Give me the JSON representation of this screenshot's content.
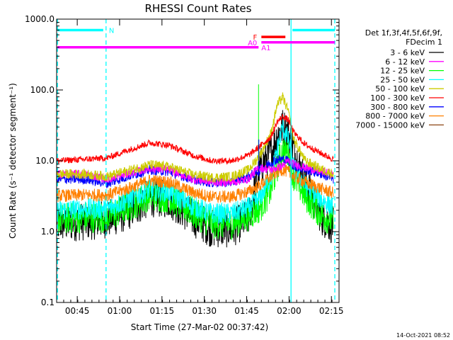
{
  "chart_data": {
    "type": "line",
    "title": "RHESSI Count Rates",
    "xlabel": "Start Time (27-Mar-02 00:37:42)",
    "ylabel": "Count Rate (s⁻¹ detector segment⁻¹)",
    "yscale": "log",
    "ylim": [
      0.1,
      1000
    ],
    "xlim_minutes": [
      0,
      100
    ],
    "x_tick_labels": [
      "00:45",
      "01:00",
      "01:15",
      "01:30",
      "01:45",
      "02:00",
      "02:15"
    ],
    "x_tick_minutes": [
      7.3,
      22.3,
      37.3,
      52.3,
      67.3,
      82.3,
      97.3
    ],
    "y_tick_labels": [
      "0.1",
      "1.0",
      "10.0",
      "100.0",
      "1000.0"
    ],
    "y_tick_values": [
      0.1,
      1,
      10,
      100,
      1000
    ],
    "legend_header": [
      "Det 1f,3f,4f,5f,6f,9f,",
      "FDecim 1"
    ],
    "grid": false,
    "legend_position": "right",
    "series": [
      {
        "name": "3 - 6 keV",
        "color": "#000000",
        "x_minutes": [
          0,
          10,
          18,
          25,
          33,
          40,
          48,
          55,
          62,
          68,
          72,
          76,
          78,
          80,
          82,
          84,
          88,
          94,
          98
        ],
        "values": [
          1.3,
          1.4,
          1.5,
          1.9,
          3.0,
          2.9,
          1.6,
          1.1,
          1.1,
          1.6,
          8.0,
          13,
          22,
          30,
          25,
          14,
          5.0,
          1.6,
          1.2
        ]
      },
      {
        "name": "6 - 12 keV",
        "color": "#ff00ff",
        "x_minutes": [
          0,
          10,
          18,
          25,
          33,
          40,
          48,
          55,
          62,
          68,
          70,
          72,
          76,
          80,
          82,
          84,
          88,
          94,
          98
        ],
        "values": [
          6.5,
          6.5,
          5.5,
          6.5,
          7.8,
          7.5,
          5.5,
          5.0,
          5.0,
          5.5,
          7.0,
          8.0,
          7.5,
          8.5,
          10,
          9,
          8.0,
          7.0,
          6.5
        ]
      },
      {
        "name": "12 - 25 keV",
        "color": "#00ff00",
        "x_minutes": [
          0,
          10,
          18,
          25,
          33,
          40,
          48,
          55,
          62,
          68,
          72,
          76,
          78,
          80,
          82,
          84,
          88,
          94,
          98
        ],
        "values": [
          1.5,
          1.6,
          1.6,
          2.2,
          3.3,
          3.0,
          1.9,
          1.3,
          1.3,
          1.7,
          2.2,
          4.0,
          8.0,
          14,
          13,
          6.0,
          3.2,
          1.7,
          1.4
        ]
      },
      {
        "name": "25 - 50 keV",
        "color": "#00ffff",
        "x_minutes": [
          0,
          10,
          18,
          25,
          33,
          40,
          48,
          55,
          62,
          68,
          72,
          76,
          78,
          80,
          82,
          84,
          88,
          94,
          98
        ],
        "values": [
          2.0,
          2.1,
          2.1,
          2.8,
          3.9,
          3.6,
          2.3,
          1.8,
          1.8,
          2.2,
          3.0,
          6.0,
          14,
          30,
          20,
          8.0,
          4.5,
          2.8,
          2.2
        ]
      },
      {
        "name": "50 - 100 keV",
        "color": "#cccc00",
        "x_minutes": [
          0,
          10,
          18,
          25,
          33,
          40,
          48,
          55,
          62,
          68,
          72,
          76,
          78,
          80,
          82,
          84,
          88,
          94,
          98
        ],
        "values": [
          6.5,
          6.5,
          6.0,
          7.2,
          8.8,
          8.2,
          6.4,
          5.8,
          6.0,
          7.5,
          12,
          25,
          60,
          80,
          50,
          20,
          10,
          7.5,
          6.5
        ]
      },
      {
        "name": "100 - 300 keV",
        "color": "#ff0000",
        "x_minutes": [
          0,
          10,
          18,
          25,
          33,
          40,
          48,
          55,
          62,
          68,
          72,
          76,
          78,
          80,
          82,
          84,
          88,
          94,
          98
        ],
        "values": [
          10,
          10.5,
          11,
          14,
          18,
          16.5,
          12,
          10,
          10,
          12,
          16,
          22,
          35,
          42,
          38,
          25,
          17,
          12.5,
          10.5
        ]
      },
      {
        "name": "300 - 800 keV",
        "color": "#0000ff",
        "x_minutes": [
          0,
          10,
          18,
          25,
          33,
          40,
          48,
          55,
          62,
          68,
          72,
          76,
          78,
          80,
          82,
          84,
          88,
          94,
          98
        ],
        "values": [
          5.5,
          5.5,
          4.8,
          6.0,
          7.5,
          7.0,
          5.5,
          4.9,
          5.0,
          6.0,
          7.5,
          9.5,
          10.5,
          10.5,
          10,
          8.5,
          7.5,
          6.5,
          5.5
        ]
      },
      {
        "name": "800 - 7000 keV",
        "color": "#ff8000",
        "x_minutes": [
          0,
          10,
          18,
          25,
          33,
          40,
          48,
          55,
          62,
          68,
          72,
          76,
          78,
          80,
          82,
          84,
          88,
          94,
          98
        ],
        "values": [
          3.2,
          3.3,
          3.3,
          4.0,
          5.3,
          5.0,
          3.6,
          3.1,
          3.1,
          3.7,
          4.5,
          6.0,
          7.0,
          7.5,
          7.0,
          6.0,
          5.0,
          4.0,
          3.5
        ]
      },
      {
        "name": "7000 - 15000 keV",
        "color": "#8b4513",
        "x_minutes": [],
        "values": []
      }
    ],
    "spikes": [
      {
        "x_minutes": 71.5,
        "values": [
          11,
          120
        ],
        "color": "#00ff00"
      },
      {
        "x_minutes": 71.6,
        "values": [
          6,
          20
        ],
        "color": "#0000ff"
      }
    ],
    "vertical_lines": [
      {
        "x_minutes": 0.3,
        "color": "#00ffff",
        "style": "dashed"
      },
      {
        "x_minutes": 17.5,
        "color": "#00ffff",
        "style": "dashed"
      },
      {
        "x_minutes": 83.0,
        "color": "#00ffff",
        "style": "solid"
      },
      {
        "x_minutes": 98.5,
        "color": "#00ffff",
        "style": "dashed"
      }
    ],
    "flag_bars": [
      {
        "label": "N",
        "color": "#00ffff",
        "segments": [
          [
            0.3,
            16.5
          ],
          [
            83.5,
            98.5
          ]
        ],
        "level": 700,
        "label_x": 18.5,
        "label_side": "right"
      },
      {
        "label": "F",
        "color": "#ff0000",
        "segments": [
          [
            72.5,
            81.0
          ]
        ],
        "level": 560,
        "label_x": 71.0,
        "label_side": "left"
      },
      {
        "label": "A0",
        "color": "#ff00ff",
        "segments": [
          [
            72.5,
            98.5
          ]
        ],
        "level": 470,
        "label_x": 71.0,
        "label_side": "left"
      },
      {
        "label": "A1",
        "color": "#ff00ff",
        "segments": [
          [
            0.3,
            71.5
          ]
        ],
        "level": 400,
        "label_x": 72.5,
        "label_side": "right"
      }
    ]
  },
  "timestamp": "14-Oct-2021 08:52"
}
